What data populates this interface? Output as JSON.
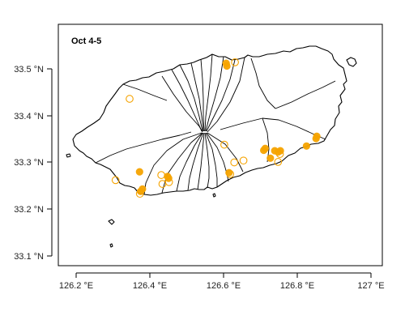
{
  "map": {
    "panel_label": "Oct 4-5",
    "x_axis": {
      "ticks": [
        126.2,
        126.4,
        126.6,
        126.8,
        127.0
      ],
      "tick_labels": [
        "126.2 °E",
        "126.4 °E",
        "126.6 °E",
        "126.8 °E",
        "127 °E"
      ],
      "range": [
        126.12,
        127.05
      ]
    },
    "y_axis": {
      "ticks": [
        33.1,
        33.2,
        33.3,
        33.4,
        33.5
      ],
      "tick_labels": [
        "33.1 °N",
        "33.2 °N",
        "33.3 °N",
        "33.4 °N",
        "33.5 °N"
      ],
      "range": [
        33.08,
        33.58
      ]
    },
    "colors": {
      "points": "#f5a300",
      "outline": "#000000",
      "background": "#ffffff"
    }
  },
  "chart_data": {
    "type": "scatter",
    "title": "",
    "xlabel": "",
    "ylabel": "",
    "xlim": [
      126.12,
      127.05
    ],
    "ylim": [
      33.08,
      33.58
    ],
    "grid": false,
    "series": [
      {
        "marker": "filled-circle",
        "points": [
          {
            "lon": 126.607,
            "lat": 33.512
          },
          {
            "lon": 126.609,
            "lat": 33.506
          },
          {
            "lon": 126.853,
            "lat": 33.356
          },
          {
            "lon": 126.851,
            "lat": 33.351
          },
          {
            "lon": 126.825,
            "lat": 33.335
          },
          {
            "lon": 126.709,
            "lat": 33.326
          },
          {
            "lon": 126.713,
            "lat": 33.33
          },
          {
            "lon": 126.739,
            "lat": 33.325
          },
          {
            "lon": 126.748,
            "lat": 33.322
          },
          {
            "lon": 126.754,
            "lat": 33.325
          },
          {
            "lon": 126.727,
            "lat": 33.309
          },
          {
            "lon": 126.615,
            "lat": 33.278
          },
          {
            "lon": 126.448,
            "lat": 33.27
          },
          {
            "lon": 126.451,
            "lat": 33.266
          },
          {
            "lon": 126.372,
            "lat": 33.28
          },
          {
            "lon": 126.38,
            "lat": 33.243
          },
          {
            "lon": 126.375,
            "lat": 33.238
          }
        ]
      },
      {
        "marker": "open-circle",
        "points": [
          {
            "lon": 126.345,
            "lat": 33.436
          },
          {
            "lon": 126.631,
            "lat": 33.514
          },
          {
            "lon": 126.602,
            "lat": 33.338
          },
          {
            "lon": 126.629,
            "lat": 33.3
          },
          {
            "lon": 126.654,
            "lat": 33.304
          },
          {
            "lon": 126.748,
            "lat": 33.301
          },
          {
            "lon": 126.753,
            "lat": 33.318
          },
          {
            "lon": 126.307,
            "lat": 33.262
          },
          {
            "lon": 126.431,
            "lat": 33.273
          },
          {
            "lon": 126.434,
            "lat": 33.254
          },
          {
            "lon": 126.452,
            "lat": 33.258
          },
          {
            "lon": 126.373,
            "lat": 33.233
          },
          {
            "lon": 126.618,
            "lat": 33.275
          }
        ]
      }
    ]
  }
}
